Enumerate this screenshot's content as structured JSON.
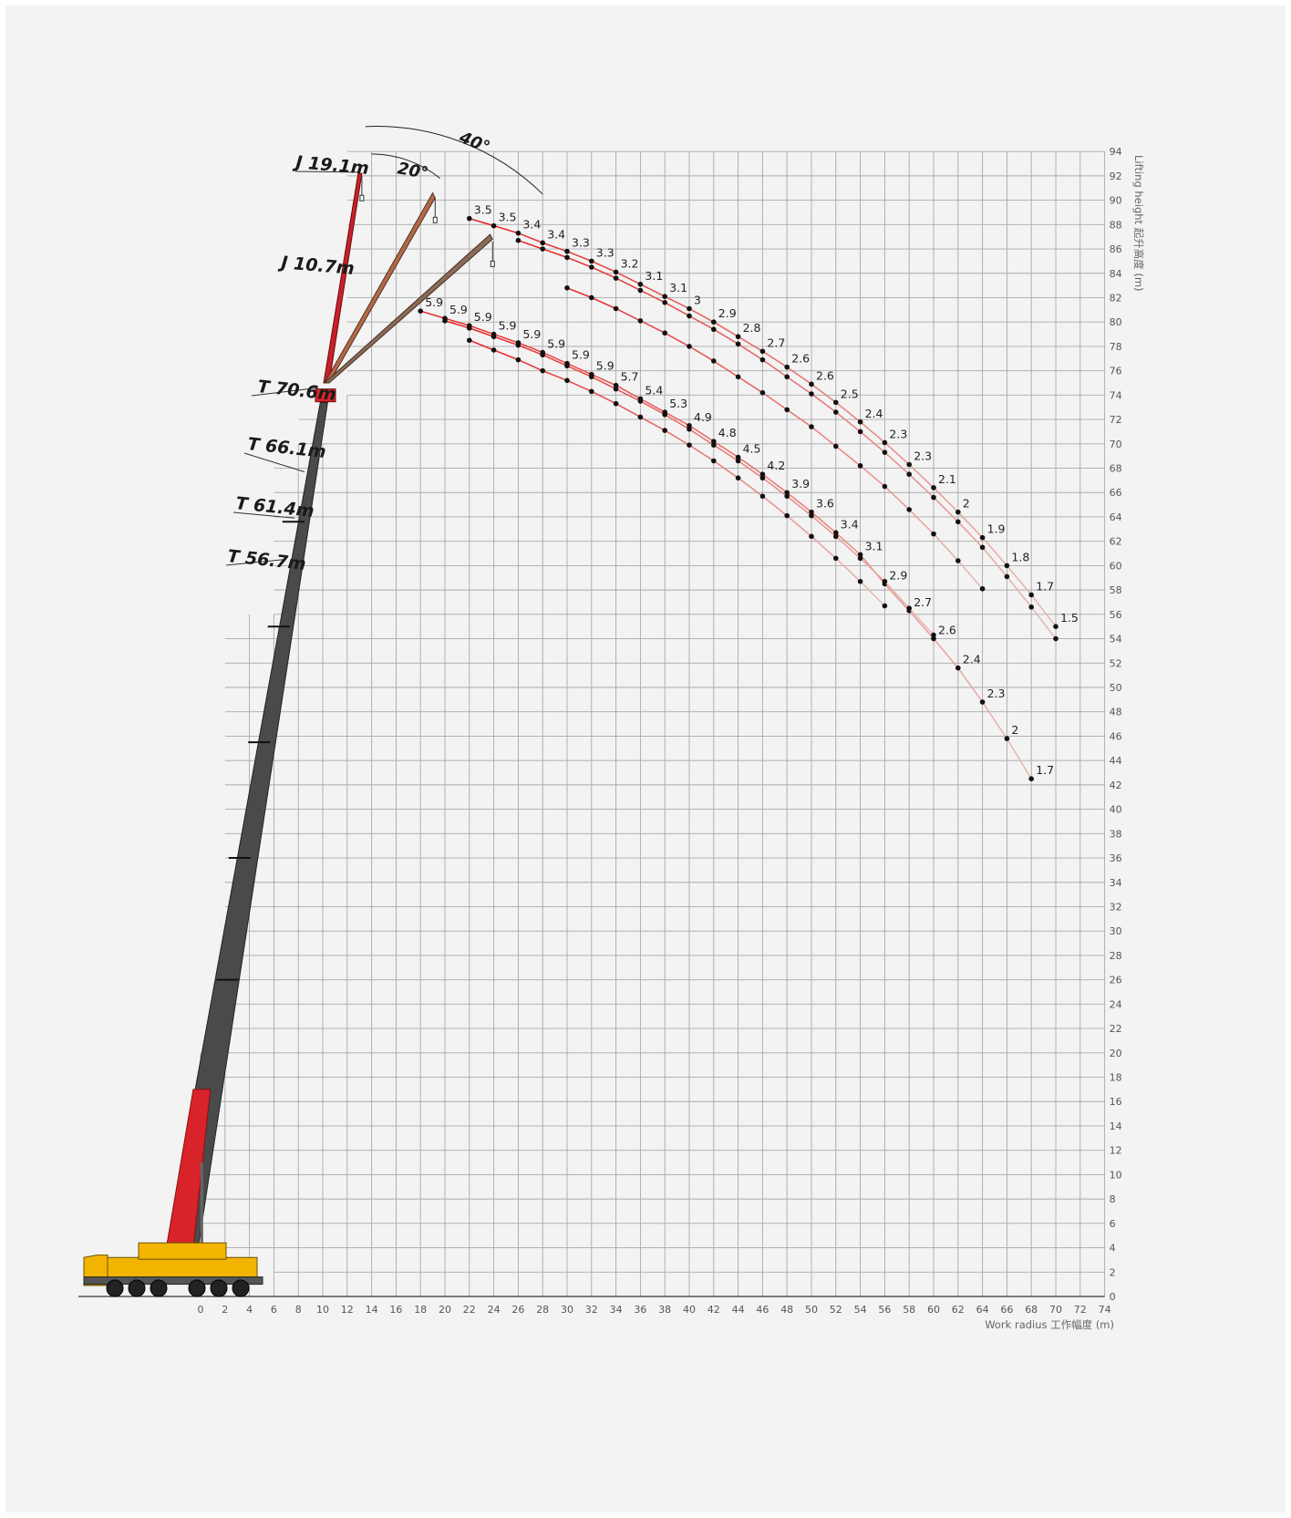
{
  "chart_data": {
    "type": "line",
    "title": "",
    "xlabel": "Work radius 工作幅度 (m)",
    "ylabel": "Lifting height 起升高度 (m)",
    "xlim": [
      0,
      74
    ],
    "ylim": [
      0,
      94
    ],
    "x_ticks": [
      0,
      2,
      4,
      6,
      8,
      10,
      12,
      14,
      16,
      18,
      20,
      22,
      24,
      26,
      28,
      30,
      32,
      34,
      36,
      38,
      40,
      42,
      44,
      46,
      48,
      50,
      52,
      54,
      56,
      58,
      60,
      62,
      64,
      66,
      68,
      70,
      72,
      74
    ],
    "y_ticks": [
      0,
      2,
      4,
      6,
      8,
      10,
      12,
      14,
      16,
      18,
      20,
      22,
      24,
      26,
      28,
      30,
      32,
      34,
      36,
      38,
      40,
      42,
      44,
      46,
      48,
      50,
      52,
      54,
      56,
      58,
      60,
      62,
      64,
      66,
      68,
      70,
      72,
      74,
      76,
      78,
      80,
      82,
      84,
      86,
      88,
      90,
      92,
      94
    ],
    "grid": true,
    "annotations": {
      "boom_lengths": [
        "J 19.1m",
        "J 10.7m",
        "T 70.6m",
        "T 66.1m",
        "T 61.4m",
        "T 56.7m"
      ],
      "offset_angles": [
        "40°",
        "20°"
      ]
    },
    "series": [
      {
        "group": "J 19.1m",
        "x": [
          22,
          24,
          26,
          28,
          30,
          32,
          34,
          36,
          38,
          40,
          42,
          44,
          46,
          48,
          50,
          52,
          54,
          56,
          58,
          60,
          62,
          64,
          66,
          68,
          70
        ],
        "y": [
          88.5,
          87.9,
          87.3,
          86.5,
          85.8,
          85.0,
          84.1,
          83.1,
          82.1,
          81.1,
          80.0,
          78.8,
          77.6,
          76.3,
          74.9,
          73.4,
          71.8,
          70.1,
          68.3,
          66.4,
          64.4,
          62.3,
          60.0,
          57.6,
          55.0
        ],
        "labels": [
          "3.5",
          "3.5",
          "3.4",
          "3.4",
          "3.3",
          "3.3",
          "3.2",
          "3.1",
          "3.1",
          "3",
          "2.9",
          "2.8",
          "2.7",
          "2.6",
          "2.6",
          "2.5",
          "2.4",
          "2.3",
          "2.3",
          "2.1",
          "2",
          "1.9",
          "1.8",
          "1.7",
          "1.5"
        ]
      },
      {
        "group": "J 19.1m",
        "x": [
          26,
          28,
          30,
          32,
          34,
          36,
          38,
          40,
          42,
          44,
          46,
          48,
          50,
          52,
          54,
          56,
          58,
          60,
          62,
          64,
          66,
          68,
          70
        ],
        "y": [
          86.7,
          86.0,
          85.3,
          84.5,
          83.6,
          82.6,
          81.6,
          80.5,
          79.4,
          78.2,
          76.9,
          75.5,
          74.1,
          72.6,
          71.0,
          69.3,
          67.5,
          65.6,
          63.6,
          61.5,
          59.1,
          56.6,
          54.0
        ],
        "labels": []
      },
      {
        "group": "J 19.1m",
        "x": [
          30,
          32,
          34,
          36,
          38,
          40,
          42,
          44,
          46,
          48,
          50,
          52,
          54,
          56,
          58,
          60,
          62,
          64
        ],
        "y": [
          82.8,
          82.0,
          81.1,
          80.1,
          79.1,
          78.0,
          76.8,
          75.5,
          74.2,
          72.8,
          71.4,
          69.8,
          68.2,
          66.5,
          64.6,
          62.6,
          60.4,
          58.1
        ],
        "labels": []
      },
      {
        "group": "J 10.7m",
        "x": [
          18,
          20,
          22,
          24,
          26,
          28,
          30,
          32,
          34,
          36,
          38,
          40,
          42,
          44,
          46,
          48,
          50,
          52,
          54,
          56,
          58,
          60,
          62,
          64,
          66,
          68
        ],
        "y": [
          80.9,
          80.3,
          79.7,
          79.0,
          78.3,
          77.5,
          76.6,
          75.7,
          74.8,
          73.7,
          72.6,
          71.5,
          70.2,
          68.9,
          67.5,
          66.0,
          64.4,
          62.7,
          60.9,
          58.5,
          56.3,
          54.0,
          51.6,
          48.8,
          45.8,
          42.5
        ],
        "labels": [
          "5.9",
          "5.9",
          "5.9",
          "5.9",
          "5.9",
          "5.9",
          "5.9",
          "5.9",
          "5.7",
          "5.4",
          "5.3",
          "4.9",
          "4.8",
          "4.5",
          "4.2",
          "3.9",
          "3.6",
          "3.4",
          "3.1",
          "2.9",
          "2.7",
          "2.6",
          "2.4",
          "2.3",
          "2",
          "1.7"
        ]
      },
      {
        "group": "J 10.7m",
        "x": [
          20,
          22,
          24,
          26,
          28,
          30,
          32,
          34,
          36,
          38,
          40,
          42,
          44,
          46,
          48,
          50,
          52,
          54,
          56,
          58,
          60
        ],
        "y": [
          80.1,
          79.5,
          78.8,
          78.1,
          77.3,
          76.4,
          75.5,
          74.5,
          73.5,
          72.4,
          71.2,
          69.9,
          68.6,
          67.2,
          65.7,
          64.1,
          62.4,
          60.6,
          58.7,
          56.5,
          54.3
        ],
        "labels": []
      },
      {
        "group": "J 10.7m",
        "x": [
          22,
          24,
          26,
          28,
          30,
          32,
          34,
          36,
          38,
          40,
          42,
          44,
          46,
          48,
          50,
          52,
          54,
          56
        ],
        "y": [
          78.5,
          77.7,
          76.9,
          76.0,
          75.2,
          74.3,
          73.3,
          72.2,
          71.1,
          69.9,
          68.6,
          67.2,
          65.7,
          64.1,
          62.4,
          60.6,
          58.7,
          56.7
        ],
        "labels": []
      }
    ]
  }
}
